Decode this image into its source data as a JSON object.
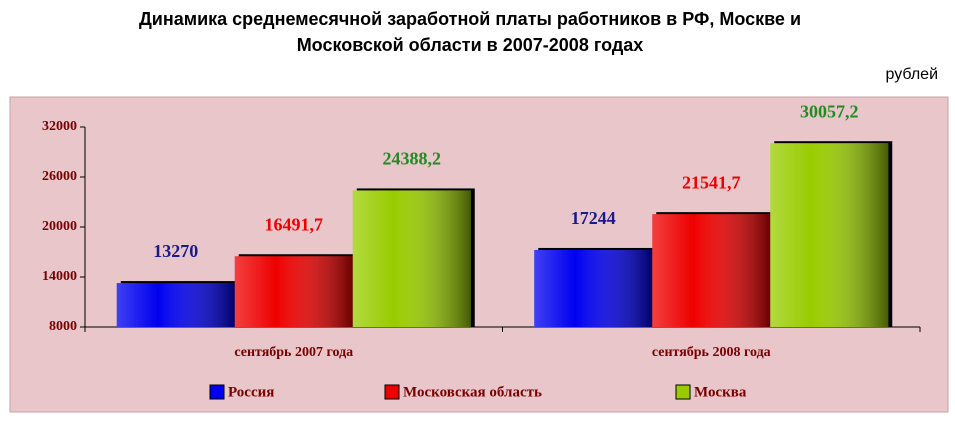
{
  "chart_data": {
    "type": "bar",
    "title": "Динамика среднемесячной заработной платы работников в РФ, Москве и",
    "subtitle": "Московской области в 2007-2008 годах",
    "unit": "рублей",
    "categories": [
      "сентябрь 2007 года",
      "сентябрь 2008 года"
    ],
    "series": [
      {
        "name": "Россия",
        "color": "#0000ee",
        "values": [
          13270,
          17244
        ]
      },
      {
        "name": "Московская область",
        "color": "#ee0000",
        "values": [
          16491.7,
          21541.7
        ],
        "value_labels": [
          "16491,7",
          "21541,7"
        ]
      },
      {
        "name": "Москва",
        "color": "#99cc00",
        "values": [
          24388.2,
          30057.2
        ],
        "value_labels": [
          "24388,2",
          "30057,2"
        ]
      }
    ],
    "ylim": [
      8000,
      32000
    ],
    "yticks": [
      8000,
      14000,
      20000,
      26000,
      32000
    ],
    "label_colors": [
      "#1a1a8c",
      "#ee0000",
      "#228b22"
    ]
  }
}
